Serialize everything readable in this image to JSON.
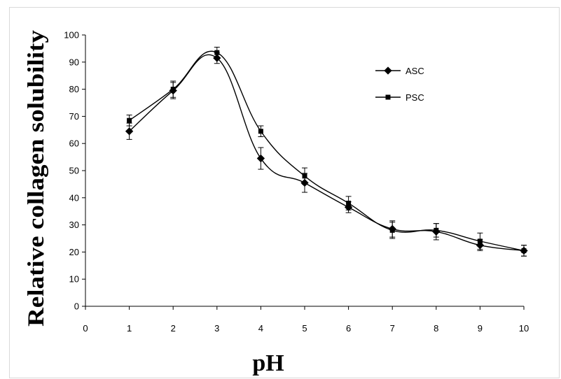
{
  "chart_data": {
    "type": "line",
    "xlabel": "pH",
    "ylabel": "Relative collagen solubility",
    "xlim": [
      0,
      10
    ],
    "ylim": [
      0,
      100
    ],
    "x_ticks": [
      "0",
      "1",
      "2",
      "3",
      "4",
      "5",
      "6",
      "7",
      "8",
      "9",
      "10"
    ],
    "y_ticks": [
      "0",
      "10",
      "20",
      "30",
      "40",
      "50",
      "60",
      "70",
      "80",
      "90",
      "100"
    ],
    "grid": false,
    "legend_position": "top-right",
    "x": [
      1,
      2,
      3,
      4,
      5,
      6,
      7,
      8,
      9,
      10
    ],
    "series": [
      {
        "name": "ASC",
        "marker": "diamond",
        "values": [
          64.5,
          79.5,
          91.5,
          54.5,
          45.5,
          36.5,
          28.5,
          27.5,
          22.5,
          20.5
        ],
        "error": [
          3,
          3,
          2,
          4,
          3.5,
          2,
          3,
          3,
          2,
          2
        ]
      },
      {
        "name": "PSC",
        "marker": "square",
        "values": [
          68.5,
          80,
          93.5,
          64.5,
          48,
          38,
          28,
          28,
          24,
          20.5
        ],
        "error": [
          2,
          3,
          2,
          2,
          3,
          2.5,
          3,
          2.5,
          3,
          2
        ]
      }
    ]
  }
}
